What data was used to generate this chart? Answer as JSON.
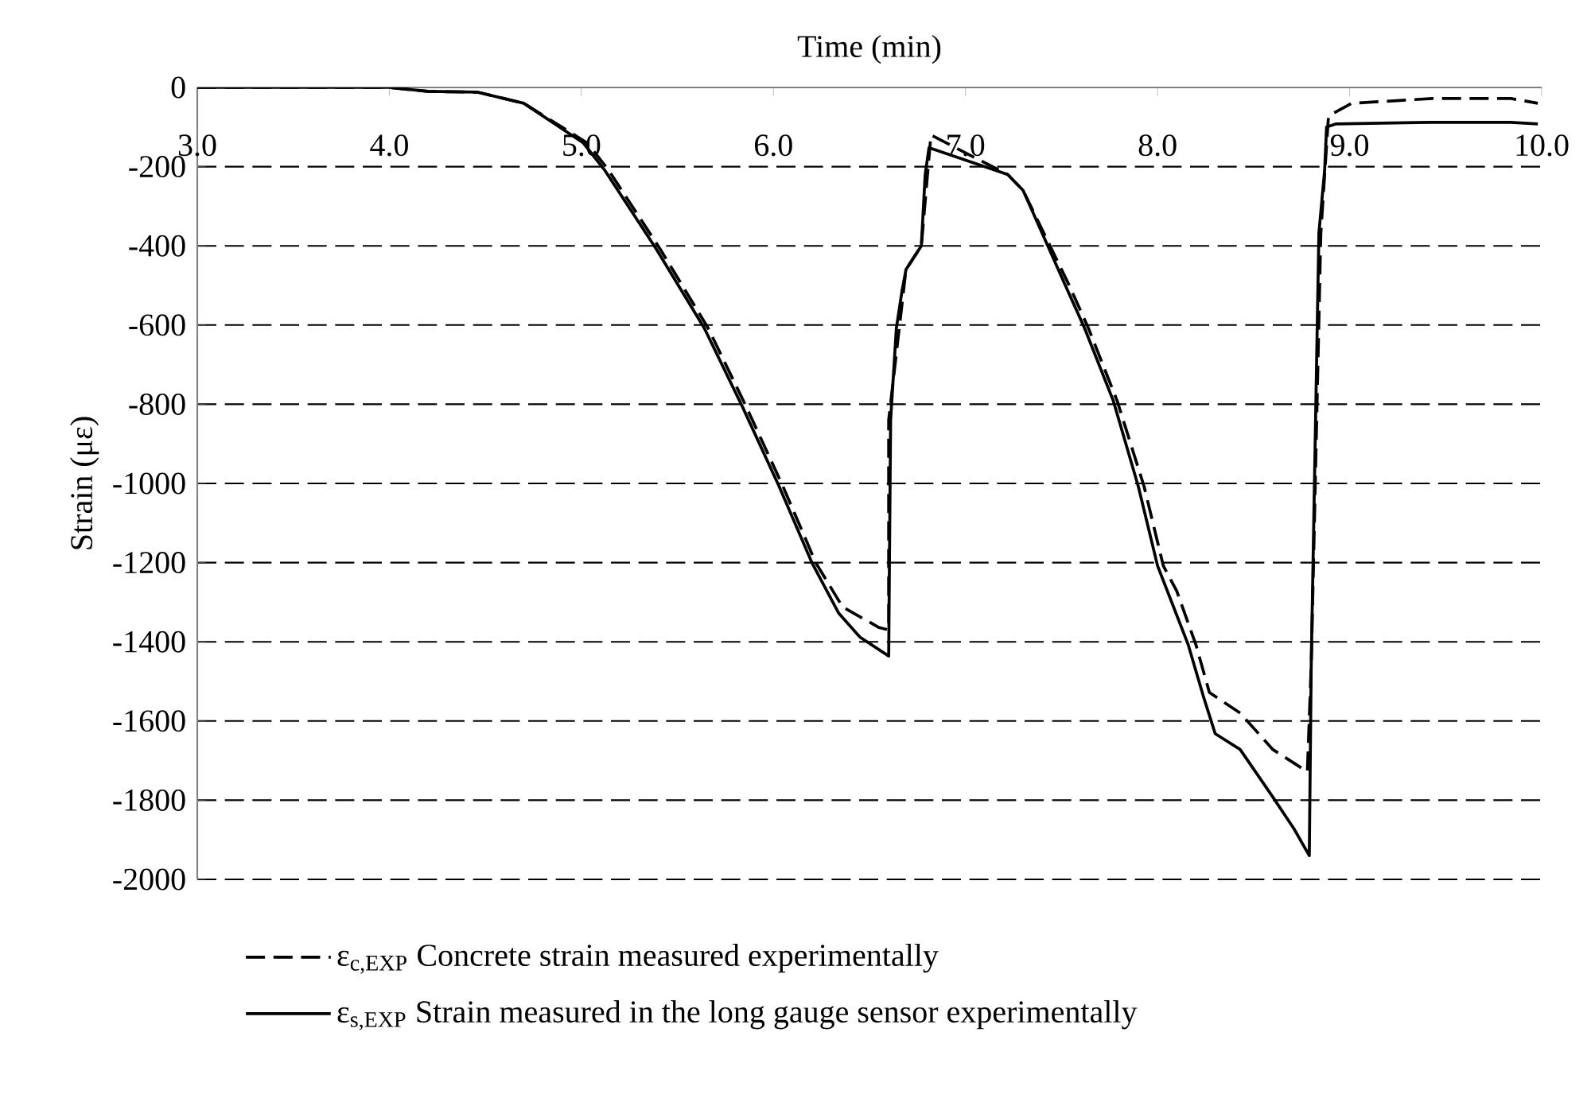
{
  "chart_data": {
    "type": "line",
    "xlabel": "Time (min)",
    "ylabel": "Strain  (με)",
    "xlim": [
      3,
      10
    ],
    "ylim": [
      -2000,
      0
    ],
    "xticks": [
      {
        "value": 3,
        "label": "3.0"
      },
      {
        "value": 4,
        "label": "4.0"
      },
      {
        "value": 5,
        "label": "5.0"
      },
      {
        "value": 6,
        "label": "6.0"
      },
      {
        "value": 7,
        "label": "7.0"
      },
      {
        "value": 8,
        "label": "8.0"
      },
      {
        "value": 9,
        "label": "9.0"
      },
      {
        "value": 10,
        "label": "10.0"
      }
    ],
    "yticks": [
      0,
      -200,
      -400,
      -600,
      -800,
      -1000,
      -1200,
      -1400,
      -1600,
      -1800,
      -2000
    ],
    "grid": "y",
    "legend": "bottom",
    "series": [
      {
        "name": "ε$_{c,EXP}$  Concrete strain measured experimentally",
        "color": "#000000",
        "line_style": "dashed",
        "x": [
          3.0,
          4.0,
          4.2,
          4.46,
          4.7,
          5.03,
          5.14,
          5.41,
          5.66,
          5.86,
          6.05,
          6.22,
          6.36,
          6.55,
          6.6,
          6.6,
          6.69,
          6.77,
          6.82,
          7.22,
          7.3,
          7.42,
          7.54,
          7.64,
          7.79,
          7.93,
          8.03,
          8.1,
          8.2,
          8.27,
          8.43,
          8.6,
          8.78,
          8.8,
          8.85,
          8.89,
          9.01,
          9.43,
          9.84,
          9.98
        ],
        "values": [
          0,
          0,
          -10,
          -12,
          -40,
          -140,
          -208,
          -408,
          -608,
          -808,
          -1008,
          -1200,
          -1312,
          -1364,
          -1370,
          -840,
          -460,
          -400,
          -120,
          -220,
          -260,
          -380,
          -500,
          -608,
          -792,
          -1008,
          -1208,
          -1272,
          -1408,
          -1528,
          -1580,
          -1672,
          -1728,
          -1460,
          -368,
          -72,
          -40,
          -28,
          -28,
          -40
        ]
      },
      {
        "name": "ε$_{s,EXP}$  Strain measured in the long gauge sensor experimentally",
        "color": "#000000",
        "line_style": "solid",
        "x": [
          3.0,
          4.0,
          4.2,
          4.46,
          4.7,
          5.01,
          5.12,
          5.39,
          5.64,
          5.84,
          6.03,
          6.2,
          6.34,
          6.45,
          6.6,
          6.61,
          6.64,
          6.67,
          6.69,
          6.77,
          6.79,
          6.81,
          7.22,
          7.3,
          7.41,
          7.52,
          7.62,
          7.77,
          7.9,
          8.0,
          8.16,
          8.24,
          8.3,
          8.43,
          8.6,
          8.71,
          8.79,
          8.8,
          8.84,
          8.87,
          8.88,
          8.93,
          9.43,
          9.84,
          9.98
        ],
        "values": [
          0,
          0,
          -10,
          -12,
          -40,
          -140,
          -208,
          -408,
          -608,
          -808,
          -1008,
          -1200,
          -1328,
          -1388,
          -1436,
          -840,
          -608,
          -512,
          -460,
          -400,
          -220,
          -152,
          -220,
          -260,
          -380,
          -500,
          -608,
          -792,
          -1008,
          -1208,
          -1408,
          -1540,
          -1632,
          -1672,
          -1792,
          -1872,
          -1940,
          -1460,
          -368,
          -208,
          -100,
          -92,
          -88,
          -88,
          -92
        ]
      }
    ]
  }
}
